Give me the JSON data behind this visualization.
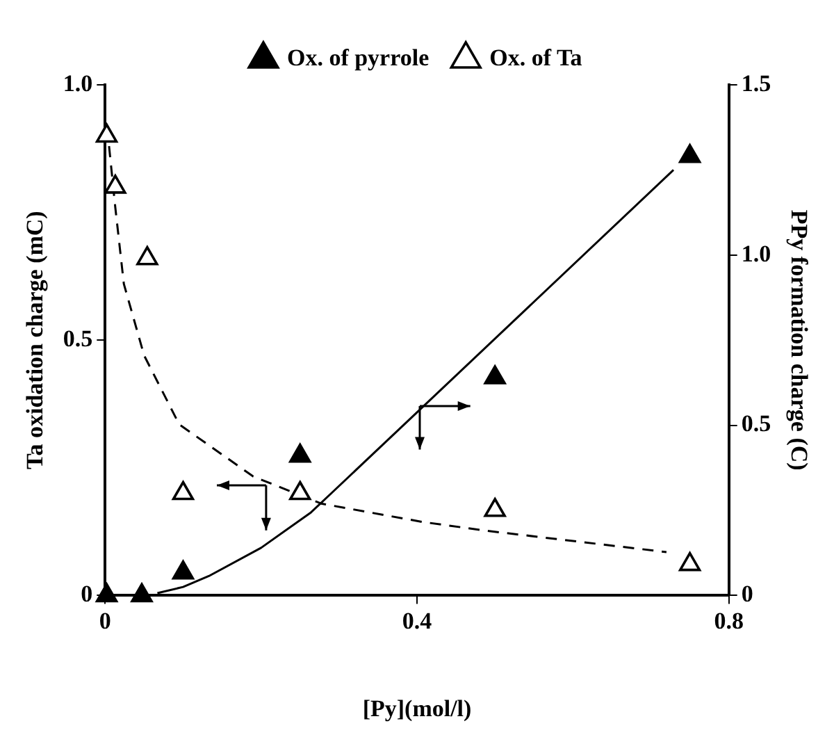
{
  "chart_data": {
    "type": "scatter",
    "xlabel": "[Py](mol/l)",
    "ylabel": "Ta oxidation charge (mC)",
    "y2label": "PPy formation charge (C)",
    "xlim": [
      0,
      0.8
    ],
    "xticks": [
      0,
      0.4,
      0.8
    ],
    "ylim": [
      0,
      1
    ],
    "yticks": [
      0,
      0.5,
      {
        "value": 1,
        "label": "1.0"
      }
    ],
    "y2lim": [
      0,
      1.5
    ],
    "y2ticks": [
      0,
      0.5,
      {
        "value": 1,
        "label": "1.0"
      },
      1.5
    ],
    "grid": false,
    "legend": "top",
    "marker": "triangle",
    "series": [
      {
        "name": "Ox. of pyrrole",
        "color": "#000000",
        "axis": "y2",
        "x": [
          0.002,
          0.047,
          0.1,
          0.25,
          0.5,
          0.75
        ],
        "values": [
          0.0,
          0.0,
          0.067,
          0.41,
          0.64,
          1.29
        ]
      },
      {
        "name": "Ox. of Ta",
        "color": "#ffffff",
        "axis": "y",
        "x": [
          0.002,
          0.013,
          0.054,
          0.1,
          0.25,
          0.5,
          0.75
        ],
        "values": [
          0.9,
          0.8,
          0.66,
          0.2,
          0.2,
          0.167,
          0.061
        ]
      },
      {
        "type": "line",
        "color": "#000000",
        "axis": "y2",
        "marker": "none",
        "line_style": "solid",
        "x": [
          0.067,
          0.1,
          0.133,
          0.2,
          0.264,
          0.29,
          0.407,
          0.729
        ],
        "values": [
          0.007,
          0.025,
          0.057,
          0.14,
          0.244,
          0.3,
          0.553,
          1.25
        ]
      },
      {
        "type": "line",
        "color": "#000000",
        "axis": "y",
        "marker": "none",
        "line_style": "dashed",
        "x": [
          0.005,
          0.013,
          0.024,
          0.05,
          0.095,
          0.19,
          0.277,
          0.407,
          0.488,
          0.72
        ],
        "values": [
          0.88,
          0.76,
          0.61,
          0.47,
          0.335,
          0.233,
          0.18,
          0.144,
          0.127,
          0.085
        ]
      }
    ]
  }
}
